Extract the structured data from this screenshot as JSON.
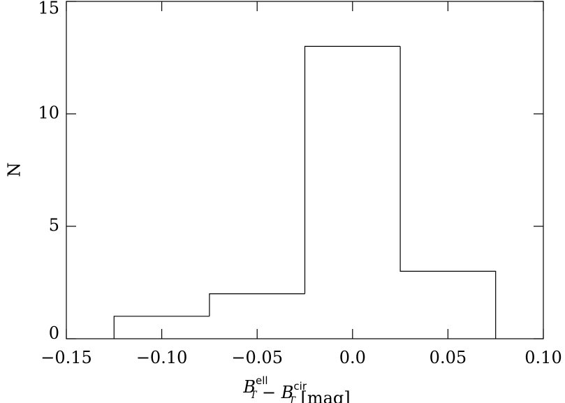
{
  "chart_data": {
    "type": "histogram",
    "bins": [
      -0.125,
      -0.075,
      -0.025,
      0.025,
      0.075
    ],
    "values": [
      1,
      2,
      13,
      3
    ],
    "color": "#000000",
    "xlim": [
      -0.15,
      0.1
    ],
    "ylim": [
      0,
      15
    ],
    "xticks": [
      {
        "value": -0.15,
        "label": "−0.15"
      },
      {
        "value": -0.1,
        "label": "−0.10"
      },
      {
        "value": -0.05,
        "label": "−0.05"
      },
      {
        "value": 0.0,
        "label": "0.0"
      },
      0.05,
      {
        "value": 0.1,
        "label": "0.10"
      }
    ],
    "yticks": [
      0,
      5,
      10,
      15
    ],
    "ylabel": "N",
    "xlabel": [
      {
        "text": "B",
        "sub": "T",
        "sup": "ell"
      },
      {
        "text": " − "
      },
      {
        "text": "B",
        "sub": "T",
        "sup": "cir"
      },
      {
        "text": " [mag]"
      }
    ]
  }
}
